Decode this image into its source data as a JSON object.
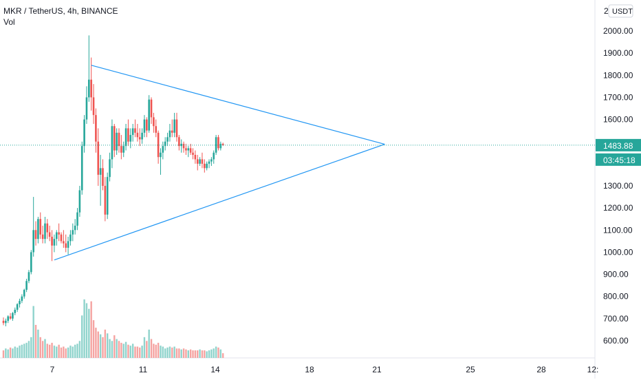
{
  "header": {
    "title": "MKR / TetherUS, 4h, BINANCE",
    "volume_label": "Vol"
  },
  "axis": {
    "currency_badge": "USDT",
    "top_clip_label": "2",
    "price_ticks": [
      "2000.00",
      "1900.00",
      "1800.00",
      "1700.00",
      "1600.00",
      "1300.00",
      "1200.00",
      "1100.00",
      "1000.00",
      "900.00",
      "800.00",
      "700.00",
      "600.00"
    ],
    "date_ticks": [
      "7",
      "11",
      "14",
      "18",
      "21",
      "25",
      "28",
      "12:"
    ]
  },
  "last_price": {
    "value": "1483.88",
    "countdown": "03:45:18"
  },
  "colors": {
    "up": "#26a69a",
    "down": "#ef5350",
    "up_vol": "#8fd3cc",
    "down_vol": "#f5a3a1",
    "trendline": "#2196f3",
    "price_label": "#26a69a"
  },
  "chart_data": {
    "type": "candlestick",
    "symbol": "MKR / TetherUS",
    "interval": "4h",
    "exchange": "BINANCE",
    "ylim": [
      560,
      2100
    ],
    "x_axis": {
      "labels": [
        "7",
        "11",
        "14",
        "18",
        "21",
        "25",
        "28"
      ],
      "label_candle_index": [
        21,
        61,
        92,
        133,
        164,
        204,
        235
      ]
    },
    "candles": [
      [
        690,
        705,
        670,
        680
      ],
      [
        680,
        700,
        665,
        690
      ],
      [
        690,
        715,
        680,
        710
      ],
      [
        710,
        725,
        695,
        700
      ],
      [
        700,
        730,
        690,
        725
      ],
      [
        725,
        750,
        715,
        740
      ],
      [
        740,
        770,
        730,
        765
      ],
      [
        765,
        790,
        750,
        780
      ],
      [
        780,
        810,
        770,
        800
      ],
      [
        800,
        835,
        790,
        830
      ],
      [
        830,
        880,
        820,
        870
      ],
      [
        870,
        920,
        860,
        910
      ],
      [
        910,
        1010,
        900,
        1000
      ],
      [
        1000,
        1250,
        980,
        1100
      ],
      [
        1100,
        1140,
        1030,
        1060
      ],
      [
        1060,
        1160,
        1040,
        1150
      ],
      [
        1150,
        1180,
        1060,
        1080
      ],
      [
        1080,
        1120,
        1040,
        1060
      ],
      [
        1060,
        1160,
        1040,
        1130
      ],
      [
        1130,
        1150,
        1060,
        1090
      ],
      [
        1090,
        1120,
        1050,
        1070
      ],
      [
        1070,
        1100,
        960,
        1030
      ],
      [
        1030,
        1080,
        1000,
        1060
      ],
      [
        1060,
        1100,
        1030,
        1090
      ],
      [
        1090,
        1130,
        1050,
        1080
      ],
      [
        1080,
        1090,
        1040,
        1050
      ],
      [
        1050,
        1100,
        1020,
        1040
      ],
      [
        1040,
        1080,
        1000,
        1020
      ],
      [
        1020,
        1070,
        990,
        1050
      ],
      [
        1050,
        1100,
        1030,
        1080
      ],
      [
        1080,
        1130,
        1050,
        1100
      ],
      [
        1100,
        1150,
        1080,
        1120
      ],
      [
        1120,
        1200,
        1100,
        1180
      ],
      [
        1180,
        1300,
        1160,
        1280
      ],
      [
        1280,
        1500,
        1260,
        1480
      ],
      [
        1480,
        1620,
        1450,
        1600
      ],
      [
        1600,
        1750,
        1580,
        1700
      ],
      [
        1700,
        1980,
        1680,
        1780
      ],
      [
        1780,
        1880,
        1640,
        1700
      ],
      [
        1700,
        1760,
        1580,
        1620
      ],
      [
        1620,
        1650,
        1450,
        1500
      ],
      [
        1500,
        1560,
        1300,
        1350
      ],
      [
        1350,
        1440,
        1210,
        1380
      ],
      [
        1380,
        1420,
        1280,
        1300
      ],
      [
        1300,
        1340,
        1140,
        1170
      ],
      [
        1170,
        1360,
        1150,
        1340
      ],
      [
        1340,
        1450,
        1320,
        1420
      ],
      [
        1420,
        1600,
        1380,
        1570
      ],
      [
        1570,
        1580,
        1430,
        1460
      ],
      [
        1460,
        1560,
        1440,
        1540
      ],
      [
        1540,
        1560,
        1450,
        1480
      ],
      [
        1480,
        1530,
        1420,
        1450
      ],
      [
        1450,
        1500,
        1430,
        1480
      ],
      [
        1480,
        1580,
        1460,
        1560
      ],
      [
        1560,
        1600,
        1480,
        1500
      ],
      [
        1500,
        1560,
        1470,
        1530
      ],
      [
        1530,
        1580,
        1500,
        1560
      ],
      [
        1560,
        1600,
        1520,
        1540
      ],
      [
        1540,
        1580,
        1500,
        1520
      ],
      [
        1520,
        1560,
        1480,
        1510
      ],
      [
        1510,
        1560,
        1490,
        1540
      ],
      [
        1540,
        1620,
        1520,
        1600
      ],
      [
        1600,
        1610,
        1520,
        1550
      ],
      [
        1550,
        1710,
        1540,
        1690
      ],
      [
        1690,
        1700,
        1580,
        1610
      ],
      [
        1610,
        1630,
        1540,
        1570
      ],
      [
        1570,
        1600,
        1520,
        1540
      ],
      [
        1540,
        1550,
        1400,
        1430
      ],
      [
        1430,
        1470,
        1350,
        1450
      ],
      [
        1450,
        1500,
        1420,
        1480
      ],
      [
        1480,
        1520,
        1460,
        1500
      ],
      [
        1500,
        1540,
        1480,
        1520
      ],
      [
        1520,
        1580,
        1500,
        1550
      ],
      [
        1550,
        1600,
        1520,
        1540
      ],
      [
        1540,
        1630,
        1520,
        1600
      ],
      [
        1600,
        1630,
        1500,
        1520
      ],
      [
        1520,
        1530,
        1460,
        1480
      ],
      [
        1480,
        1510,
        1450,
        1490
      ],
      [
        1490,
        1500,
        1450,
        1470
      ],
      [
        1470,
        1490,
        1440,
        1460
      ],
      [
        1460,
        1480,
        1430,
        1470
      ],
      [
        1470,
        1490,
        1440,
        1450
      ],
      [
        1450,
        1470,
        1420,
        1440
      ],
      [
        1440,
        1460,
        1400,
        1420
      ],
      [
        1420,
        1440,
        1370,
        1400
      ],
      [
        1400,
        1430,
        1390,
        1420
      ],
      [
        1420,
        1450,
        1380,
        1400
      ],
      [
        1400,
        1420,
        1360,
        1380
      ],
      [
        1380,
        1410,
        1370,
        1400
      ],
      [
        1400,
        1420,
        1380,
        1410
      ],
      [
        1410,
        1430,
        1390,
        1420
      ],
      [
        1420,
        1460,
        1400,
        1450
      ],
      [
        1450,
        1530,
        1440,
        1520
      ],
      [
        1520,
        1530,
        1460,
        1470
      ],
      [
        1470,
        1500,
        1460,
        1490
      ],
      [
        1490,
        1495,
        1480,
        1484
      ]
    ],
    "volume": [
      8,
      10,
      9,
      11,
      10,
      12,
      11,
      13,
      14,
      15,
      16,
      18,
      22,
      55,
      35,
      30,
      22,
      18,
      20,
      15,
      14,
      16,
      13,
      12,
      14,
      11,
      12,
      10,
      11,
      13,
      12,
      14,
      15,
      18,
      45,
      62,
      58,
      52,
      60,
      40,
      32,
      28,
      25,
      22,
      30,
      26,
      20,
      18,
      24,
      20,
      18,
      16,
      15,
      17,
      14,
      13,
      15,
      12,
      12,
      11,
      13,
      22,
      18,
      30,
      20,
      15,
      14,
      16,
      13,
      12,
      10,
      11,
      12,
      11,
      12,
      10,
      10,
      9,
      10,
      9,
      8,
      9,
      8,
      8,
      8,
      9,
      8,
      8,
      7,
      8,
      9,
      10,
      12,
      11,
      9,
      5
    ],
    "trendlines": [
      {
        "name": "upper",
        "from": [
          38,
          1845
        ],
        "to": [
          165,
          1488
        ]
      },
      {
        "name": "lower",
        "from": [
          22,
          965
        ],
        "to": [
          165,
          1488
        ]
      }
    ],
    "last_price": 1483.88
  }
}
